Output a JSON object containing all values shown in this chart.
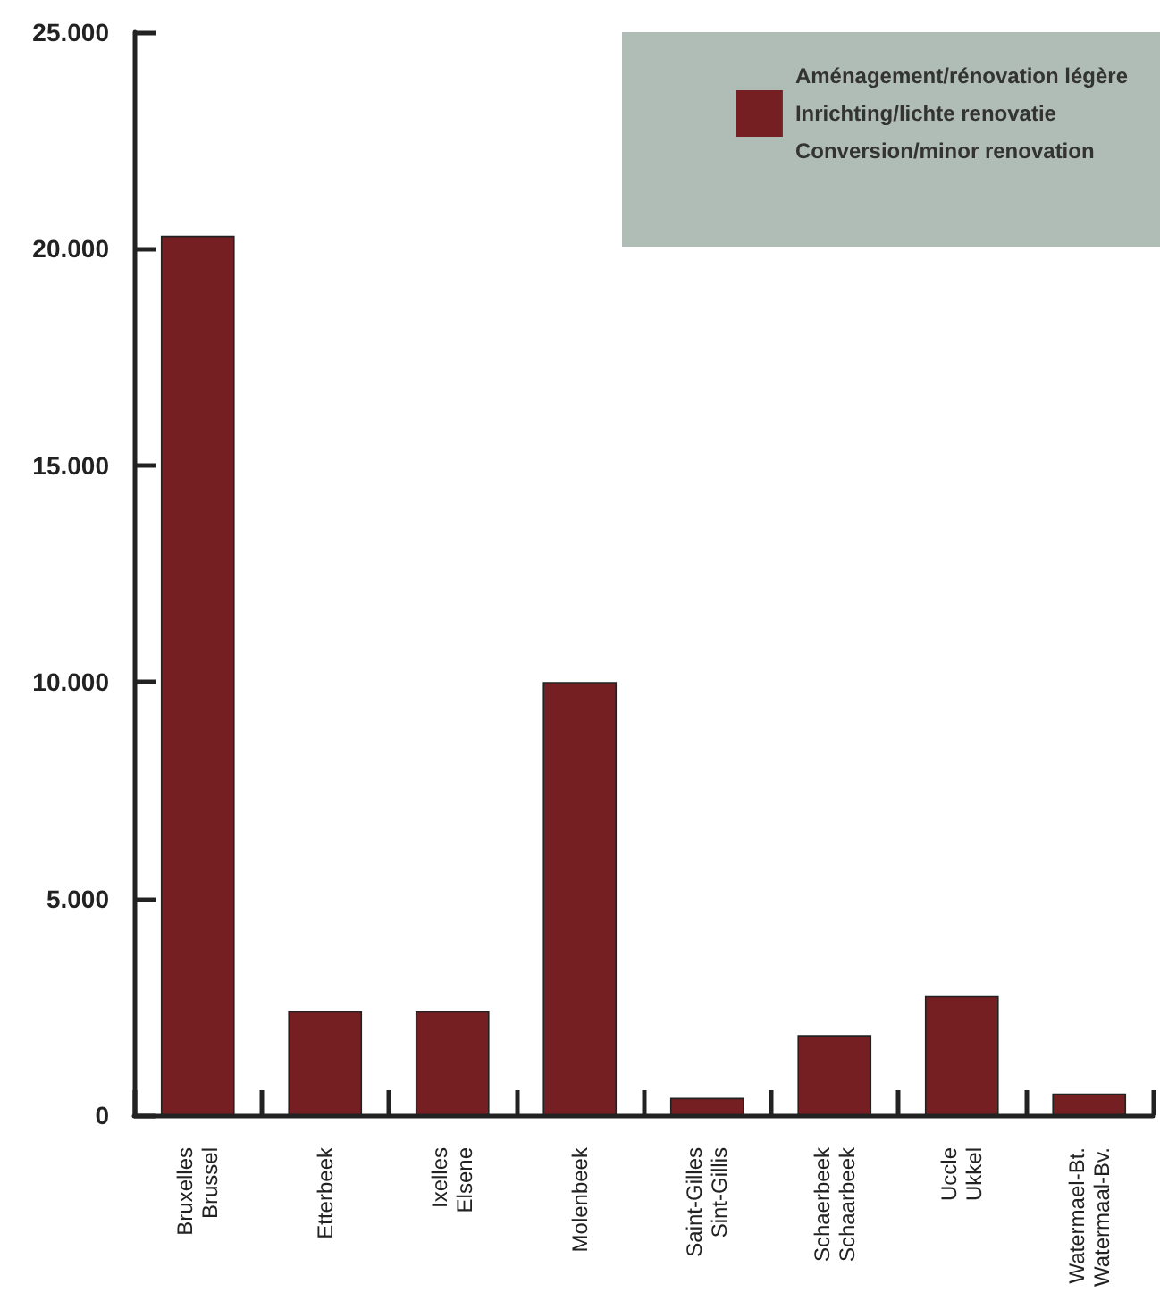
{
  "chart_data": {
    "type": "bar",
    "categories": [
      "Bruxelles\nBrussel",
      "Etterbeek",
      "Ixelles\nElsene",
      "Molenbeek",
      "Saint-Gilles\nSint-Gillis",
      "Schaerbeek\nSchaarbeek",
      "Uccle\nUkkel",
      "Watermael-Bt.\nWatermaal-Bv."
    ],
    "series": [
      {
        "name": "Aménagement/rénovation légère\nInrichting/lichte renovatie\nConversion/minor renovation",
        "color": "#761f23",
        "values": [
          20300,
          2400,
          2400,
          10000,
          400,
          1850,
          2750,
          500
        ]
      }
    ],
    "ylim": [
      0,
      25000
    ],
    "yticks": [
      {
        "value": 0,
        "label": "0"
      },
      {
        "value": 5000,
        "label": "5.000"
      },
      {
        "value": 10000,
        "label": "10.000"
      },
      {
        "value": 15000,
        "label": "15.000"
      },
      {
        "value": 20000,
        "label": "20.000"
      },
      {
        "value": 25000,
        "label": "25.000"
      }
    ],
    "grid": false,
    "legend": "top right"
  }
}
